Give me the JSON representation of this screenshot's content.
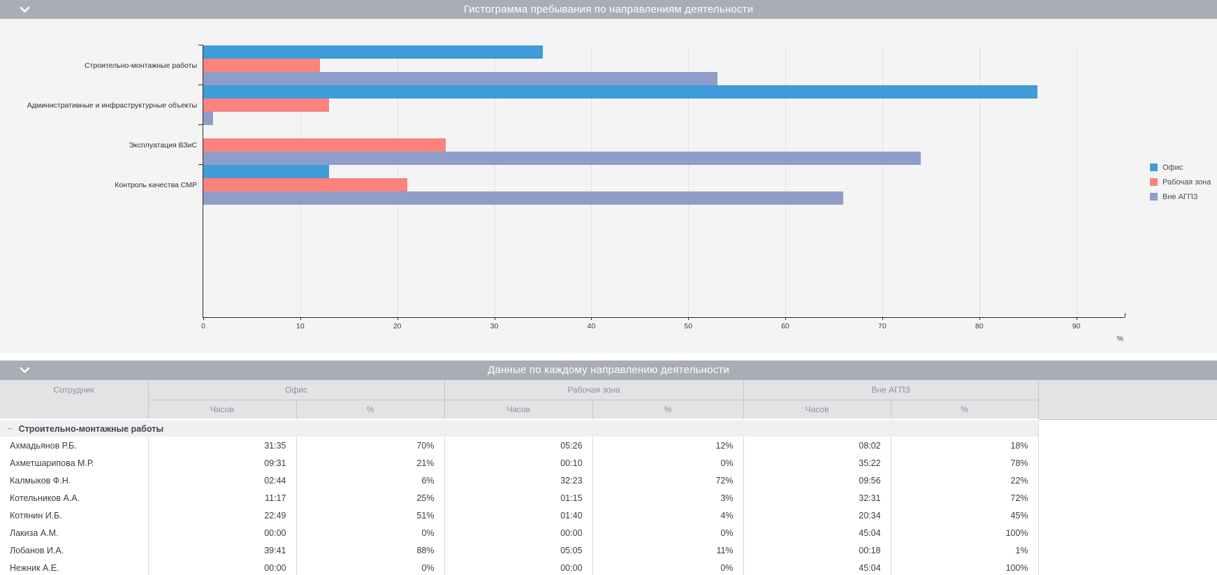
{
  "colors": {
    "panel_header": "#a9adb6",
    "chart_background": "#f4f4f5",
    "series_office": "#3e9cda",
    "series_workzone": "#fb827d",
    "series_outside": "#8f9dc9"
  },
  "panels": {
    "chart": {
      "title": "Гистограмма пребывания по направлениям деятельности"
    },
    "table": {
      "title": "Данные по каждому направлению деятельности"
    }
  },
  "chart_data": {
    "type": "bar",
    "orientation": "horizontal",
    "title": "Гистограмма пребывания по направлениям деятельности",
    "categories": [
      "Строительно-монтажные работы",
      "Административные и инфраструктурные объекты",
      "Эксплуатация ВЗиС",
      "Контроль качества СМР"
    ],
    "series": [
      {
        "name": "Офис",
        "color": "#3e9cda",
        "values": [
          35,
          86,
          0,
          13
        ]
      },
      {
        "name": "Рабочая зона",
        "color": "#fb827d",
        "values": [
          12,
          13,
          25,
          21
        ]
      },
      {
        "name": "Вне АГПЗ",
        "color": "#8f9dc9",
        "values": [
          53,
          1,
          74,
          66
        ]
      }
    ],
    "xlim": [
      0,
      95
    ],
    "xticks": [
      0,
      10,
      20,
      30,
      40,
      50,
      60,
      70,
      80,
      90
    ],
    "x_unit": "%",
    "grid": true,
    "legend_position": "right"
  },
  "table": {
    "employee_col": "Сотрудник",
    "col_groups": [
      {
        "label": "Офис",
        "sub": [
          "Часов",
          "%"
        ]
      },
      {
        "label": "Рабочая зона",
        "sub": [
          "Часов",
          "%"
        ]
      },
      {
        "label": "Вне АГПЗ",
        "sub": [
          "Часов",
          "%"
        ]
      }
    ],
    "group_row": {
      "collapse_glyph": "−",
      "label": "Строительно-монтажные работы"
    },
    "rows": [
      {
        "name": "Ахмадьянов Р.Б.",
        "values": [
          "31:35",
          "70%",
          "05:26",
          "12%",
          "08:02",
          "18%"
        ]
      },
      {
        "name": "Ахметшарипова М.Р.",
        "values": [
          "09:31",
          "21%",
          "00:10",
          "0%",
          "35:22",
          "78%"
        ]
      },
      {
        "name": "Калмыков Ф.Н.",
        "values": [
          "02:44",
          "6%",
          "32:23",
          "72%",
          "09:56",
          "22%"
        ]
      },
      {
        "name": "Котельников А.А.",
        "values": [
          "11:17",
          "25%",
          "01:15",
          "3%",
          "32:31",
          "72%"
        ]
      },
      {
        "name": "Котянин И.Б.",
        "values": [
          "22:49",
          "51%",
          "01:40",
          "4%",
          "20:34",
          "45%"
        ]
      },
      {
        "name": "Лакиза А.М.",
        "values": [
          "00:00",
          "0%",
          "00:00",
          "0%",
          "45:04",
          "100%"
        ]
      },
      {
        "name": "Лобанов И.А.",
        "values": [
          "39:41",
          "88%",
          "05:05",
          "11%",
          "00:18",
          "1%"
        ]
      },
      {
        "name": "Нежник А.Е.",
        "values": [
          "00:00",
          "0%",
          "00:00",
          "0%",
          "45:04",
          "100%"
        ]
      }
    ]
  }
}
